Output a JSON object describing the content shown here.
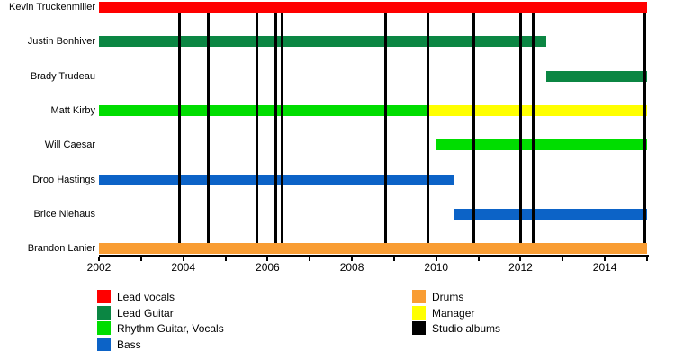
{
  "chart_data": {
    "type": "gantt-timeline",
    "x_axis": {
      "min": 2002,
      "max": 2015,
      "tick_interval": 1,
      "tick_labels": [
        "2002",
        "2004",
        "2006",
        "2008",
        "2010",
        "2012",
        "2014"
      ]
    },
    "members": [
      {
        "name": "Kevin Truckenmiller",
        "segments": [
          {
            "role": "Lead vocals",
            "start": 2002,
            "end": 2015
          }
        ]
      },
      {
        "name": "Justin Bonhiver",
        "segments": [
          {
            "role": "Lead Guitar",
            "start": 2002,
            "end": 2012.6
          }
        ]
      },
      {
        "name": "Brady Trudeau",
        "segments": [
          {
            "role": "Lead Guitar",
            "start": 2012.6,
            "end": 2015
          }
        ]
      },
      {
        "name": "Matt Kirby",
        "segments": [
          {
            "role": "Rhythm Guitar, Vocals",
            "start": 2002,
            "end": 2009.8
          },
          {
            "role": "Manager",
            "start": 2009.8,
            "end": 2015
          }
        ]
      },
      {
        "name": "Will Caesar",
        "segments": [
          {
            "role": "Rhythm Guitar, Vocals",
            "start": 2010,
            "end": 2015
          }
        ]
      },
      {
        "name": "Droo Hastings",
        "segments": [
          {
            "role": "Bass",
            "start": 2002,
            "end": 2010.4
          }
        ]
      },
      {
        "name": "Brice Niehaus",
        "segments": [
          {
            "role": "Bass",
            "start": 2010.4,
            "end": 2015
          }
        ]
      },
      {
        "name": "Brandon Lanier",
        "segments": [
          {
            "role": "Drums",
            "start": 2002,
            "end": 2015
          }
        ]
      }
    ],
    "albums": [
      2003.9,
      2004.6,
      2005.75,
      2006.2,
      2006.35,
      2008.8,
      2009.8,
      2010.9,
      2012.0,
      2012.3,
      2014.95
    ],
    "roles": {
      "Lead vocals": "#FF0000",
      "Lead Guitar": "#0B8643",
      "Rhythm Guitar, Vocals": "#00DD00",
      "Bass": "#0C63C7",
      "Drums": "#F99D33",
      "Manager": "#FFFF00",
      "Studio albums": "#000000"
    },
    "legend": {
      "columns": [
        [
          "Lead vocals",
          "Lead Guitar",
          "Rhythm Guitar, Vocals",
          "Bass"
        ],
        [
          "Drums",
          "Manager",
          "Studio albums"
        ]
      ]
    }
  }
}
